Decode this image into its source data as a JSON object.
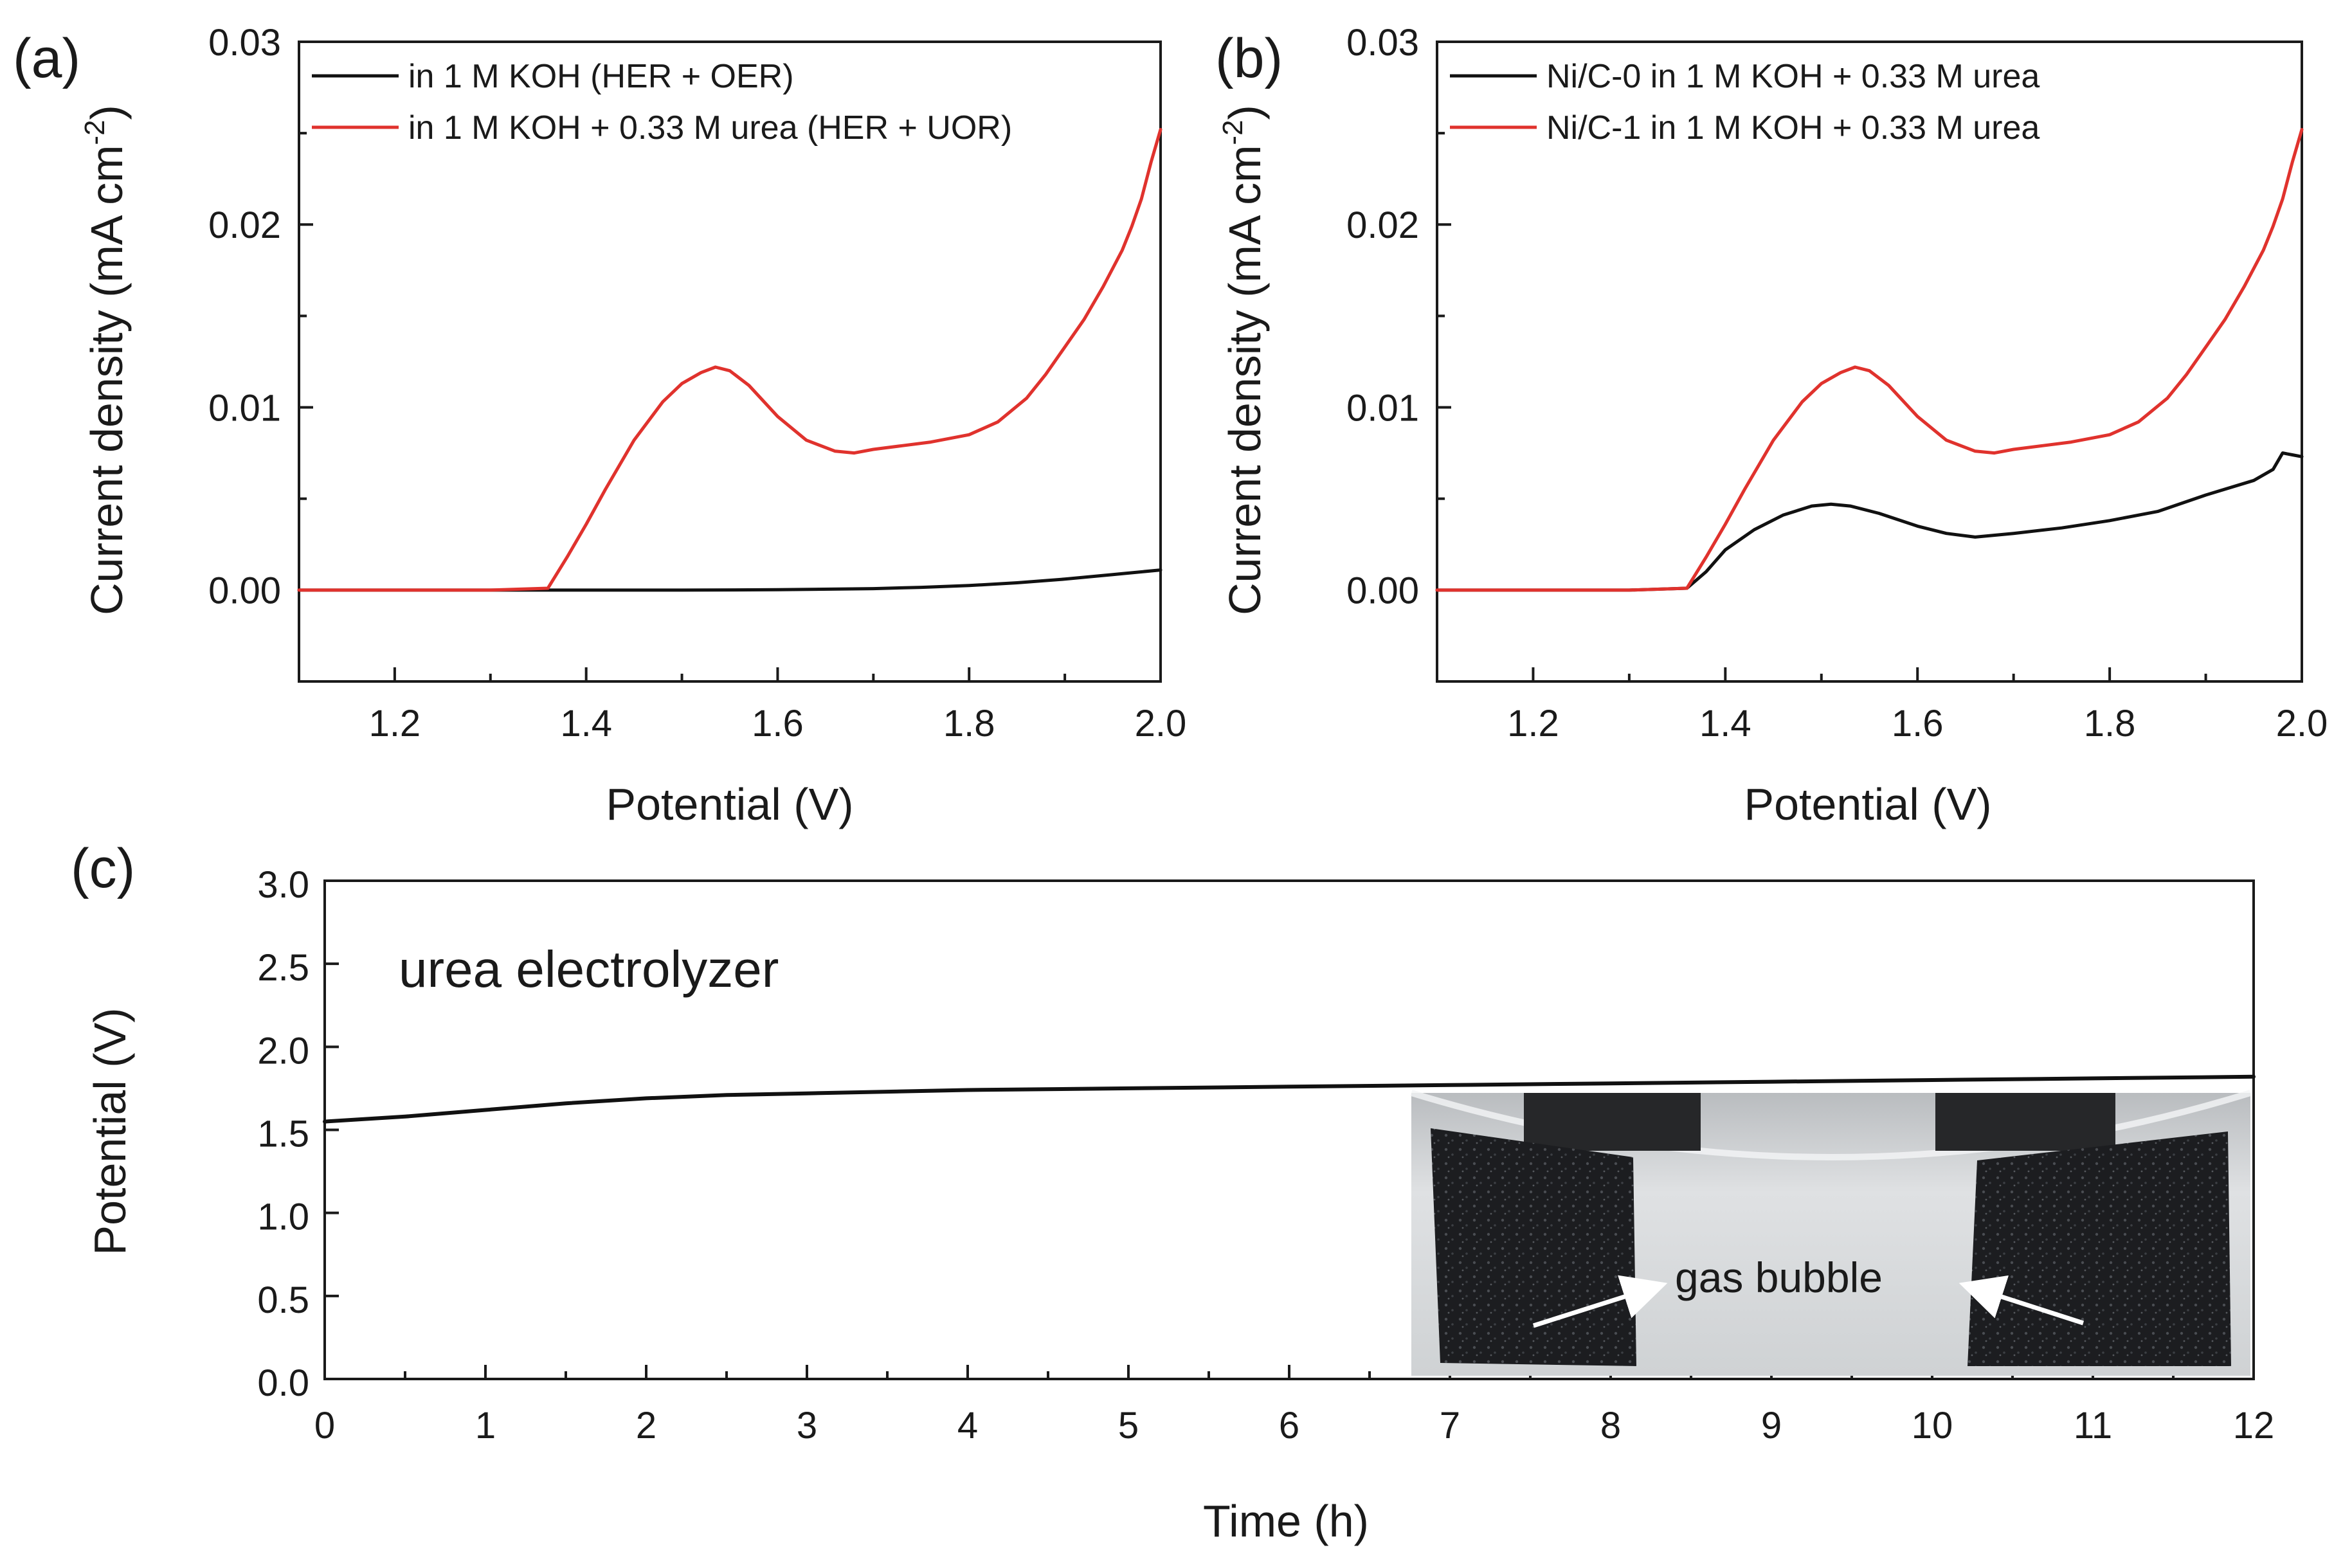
{
  "figure": {
    "panel_labels": [
      "(a)",
      "(b)",
      "(c)"
    ]
  },
  "colors": {
    "black_series": "#111111",
    "red_series": "#e0322d",
    "axis": "#1a1a1a",
    "inset_bg": "#c9ccce",
    "foam": "#1b1c1e",
    "arrow": "#ffffff"
  },
  "chart_data": [
    {
      "id": "a",
      "type": "line",
      "xlabel": "Potential (V)",
      "ylabel_main": "Current density (mA cm",
      "ylabel_sup": "-2",
      "ylabel_tail": ")",
      "xlim": [
        1.1,
        2.0
      ],
      "ylim": [
        -0.005,
        0.03
      ],
      "xticks": [
        1.2,
        1.4,
        1.6,
        1.8,
        2.0
      ],
      "xtick_labels": [
        "1.2",
        "1.4",
        "1.6",
        "1.8",
        "2.0"
      ],
      "yticks": [
        0.0,
        0.01,
        0.02,
        0.03
      ],
      "ytick_labels": [
        "0.00",
        "0.01",
        "0.02",
        "0.03"
      ],
      "legend_position": "top-left",
      "series": [
        {
          "name": "in 1 M KOH (HER + OER)",
          "color_key": "black_series",
          "x": [
            1.1,
            1.3,
            1.5,
            1.6,
            1.7,
            1.75,
            1.8,
            1.85,
            1.9,
            1.95,
            2.0
          ],
          "y": [
            0.0,
            0.0,
            0.0,
            2e-05,
            8e-05,
            0.00015,
            0.00025,
            0.0004,
            0.0006,
            0.00085,
            0.0011
          ]
        },
        {
          "name": "in 1 M KOH + 0.33 M urea (HER + UOR)",
          "color_key": "red_series",
          "x": [
            1.1,
            1.3,
            1.36,
            1.38,
            1.4,
            1.42,
            1.45,
            1.48,
            1.5,
            1.52,
            1.535,
            1.55,
            1.57,
            1.6,
            1.63,
            1.66,
            1.68,
            1.7,
            1.73,
            1.76,
            1.8,
            1.83,
            1.86,
            1.88,
            1.9,
            1.92,
            1.94,
            1.96,
            1.97,
            1.98,
            1.99,
            2.0
          ],
          "y": [
            0.0,
            0.0,
            0.0001,
            0.0018,
            0.0036,
            0.0055,
            0.0082,
            0.0103,
            0.0113,
            0.0119,
            0.0122,
            0.012,
            0.0112,
            0.0095,
            0.0082,
            0.0076,
            0.0075,
            0.0077,
            0.0079,
            0.0081,
            0.0085,
            0.0092,
            0.0105,
            0.0118,
            0.0133,
            0.0148,
            0.0166,
            0.0186,
            0.0199,
            0.0214,
            0.0234,
            0.0252
          ]
        }
      ]
    },
    {
      "id": "b",
      "type": "line",
      "xlabel": "Potential (V)",
      "ylabel_main": "Current density (mA cm",
      "ylabel_sup": "-2",
      "ylabel_tail": ")",
      "xlim": [
        1.1,
        2.0
      ],
      "ylim": [
        -0.005,
        0.03
      ],
      "xticks": [
        1.2,
        1.4,
        1.6,
        1.8,
        2.0
      ],
      "xtick_labels": [
        "1.2",
        "1.4",
        "1.6",
        "1.8",
        "2.0"
      ],
      "yticks": [
        0.0,
        0.01,
        0.02,
        0.03
      ],
      "ytick_labels": [
        "0.00",
        "0.01",
        "0.02",
        "0.03"
      ],
      "legend_position": "top-left",
      "series": [
        {
          "name": "Ni/C-0 in 1 M KOH + 0.33 M urea",
          "color_key": "black_series",
          "x": [
            1.1,
            1.3,
            1.36,
            1.38,
            1.4,
            1.43,
            1.46,
            1.49,
            1.51,
            1.53,
            1.56,
            1.6,
            1.63,
            1.66,
            1.7,
            1.75,
            1.8,
            1.85,
            1.9,
            1.95,
            1.97,
            1.98,
            1.99,
            2.0
          ],
          "y": [
            0.0,
            0.0,
            0.0001,
            0.001,
            0.0022,
            0.0033,
            0.0041,
            0.0046,
            0.0047,
            0.0046,
            0.0042,
            0.0035,
            0.0031,
            0.0029,
            0.0031,
            0.0034,
            0.0038,
            0.0043,
            0.0052,
            0.006,
            0.0066,
            0.0075,
            0.0074,
            0.0073
          ]
        },
        {
          "name": "Ni/C-1 in 1 M KOH + 0.33 M urea",
          "color_key": "red_series",
          "x": [
            1.1,
            1.3,
            1.36,
            1.38,
            1.4,
            1.42,
            1.45,
            1.48,
            1.5,
            1.52,
            1.535,
            1.55,
            1.57,
            1.6,
            1.63,
            1.66,
            1.68,
            1.7,
            1.73,
            1.76,
            1.8,
            1.83,
            1.86,
            1.88,
            1.9,
            1.92,
            1.94,
            1.96,
            1.97,
            1.98,
            1.99,
            2.0
          ],
          "y": [
            0.0,
            0.0,
            0.0001,
            0.0018,
            0.0036,
            0.0055,
            0.0082,
            0.0103,
            0.0113,
            0.0119,
            0.0122,
            0.012,
            0.0112,
            0.0095,
            0.0082,
            0.0076,
            0.0075,
            0.0077,
            0.0079,
            0.0081,
            0.0085,
            0.0092,
            0.0105,
            0.0118,
            0.0133,
            0.0148,
            0.0166,
            0.0186,
            0.0199,
            0.0214,
            0.0234,
            0.0252
          ]
        }
      ]
    },
    {
      "id": "c",
      "type": "line",
      "xlabel": "Time (h)",
      "ylabel": "Potential (V)",
      "xlim": [
        0,
        12
      ],
      "ylim": [
        0,
        3.0
      ],
      "xticks": [
        0,
        1,
        2,
        3,
        4,
        5,
        6,
        7,
        8,
        9,
        10,
        11,
        12
      ],
      "xtick_labels": [
        "0",
        "1",
        "2",
        "3",
        "4",
        "5",
        "6",
        "7",
        "8",
        "9",
        "10",
        "11",
        "12"
      ],
      "yticks": [
        0,
        0.5,
        1.0,
        1.5,
        2.0,
        2.5,
        3.0
      ],
      "ytick_labels": [
        "0.0",
        "0.5",
        "1.0",
        "1.5",
        "2.0",
        "2.5",
        "3.0"
      ],
      "annotation": "urea electrolyzer",
      "inset_caption": "gas bubble",
      "series": [
        {
          "name": "urea electrolyzer",
          "color_key": "black_series",
          "x": [
            0,
            0.5,
            1,
            1.5,
            2,
            2.5,
            3,
            4,
            5,
            6,
            7,
            8,
            9,
            10,
            11,
            12
          ],
          "y": [
            1.55,
            1.58,
            1.62,
            1.66,
            1.69,
            1.71,
            1.72,
            1.74,
            1.75,
            1.76,
            1.77,
            1.78,
            1.79,
            1.8,
            1.81,
            1.82
          ]
        }
      ]
    }
  ]
}
